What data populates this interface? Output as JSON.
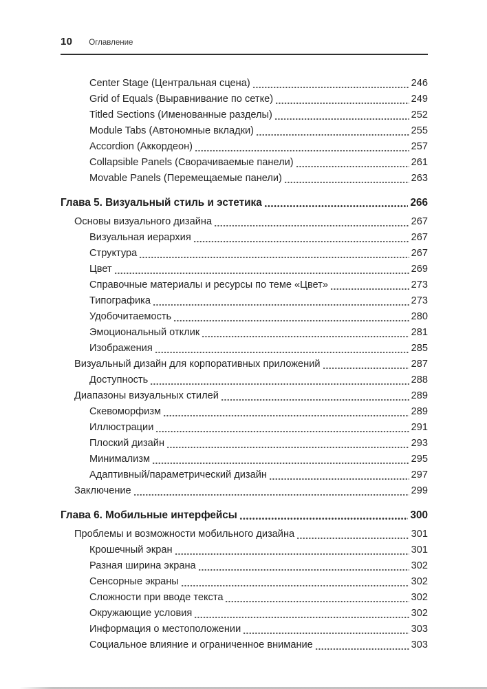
{
  "page": {
    "number": "10",
    "header_title": "Оглавление"
  },
  "toc": {
    "entries": [
      {
        "level": 2,
        "label": "Center Stage (Центральная сцена)",
        "page": "246"
      },
      {
        "level": 2,
        "label": "Grid of Equals (Выравнивание по сетке)",
        "page": "249"
      },
      {
        "level": 2,
        "label": "Titled Sections (Именованные разделы)",
        "page": "252"
      },
      {
        "level": 2,
        "label": "Module Tabs (Автономные вкладки)",
        "page": "255"
      },
      {
        "level": 2,
        "label": "Accordion (Аккордеон)",
        "page": "257"
      },
      {
        "level": 2,
        "label": "Collapsible Panels (Сворачиваемые панели)",
        "page": "261"
      },
      {
        "level": 2,
        "label": "Movable Panels (Перемещаемые панели)",
        "page": "263"
      },
      {
        "level": 0,
        "label": "Глава 5. Визуальный стиль и эстетика",
        "page": "266"
      },
      {
        "level": 1,
        "label": "Основы визуального дизайна",
        "page": "267"
      },
      {
        "level": 2,
        "label": "Визуальная иерархия",
        "page": "267"
      },
      {
        "level": 2,
        "label": "Структура",
        "page": "267"
      },
      {
        "level": 2,
        "label": "Цвет",
        "page": "269"
      },
      {
        "level": 2,
        "label": "Справочные материалы и ресурсы по теме «Цвет»",
        "page": "273"
      },
      {
        "level": 2,
        "label": "Типографика",
        "page": "273"
      },
      {
        "level": 2,
        "label": "Удобочитаемость",
        "page": "280"
      },
      {
        "level": 2,
        "label": "Эмоциональный отклик",
        "page": "281"
      },
      {
        "level": 2,
        "label": "Изображения",
        "page": "285"
      },
      {
        "level": 1,
        "label": "Визуальный дизайн для корпоративных приложений",
        "page": "287"
      },
      {
        "level": 2,
        "label": "Доступность",
        "page": "288"
      },
      {
        "level": 1,
        "label": "Диапазоны визуальных стилей",
        "page": "289"
      },
      {
        "level": 2,
        "label": "Скевоморфизм",
        "page": "289"
      },
      {
        "level": 2,
        "label": "Иллюстрации",
        "page": "291"
      },
      {
        "level": 2,
        "label": "Плоский дизайн",
        "page": "293"
      },
      {
        "level": 2,
        "label": "Минимализм",
        "page": "295"
      },
      {
        "level": 2,
        "label": "Адаптивный/параметрический дизайн",
        "page": "297"
      },
      {
        "level": 1,
        "label": "Заключение",
        "page": "299"
      },
      {
        "level": 0,
        "label": "Глава 6. Мобильные интерфейсы",
        "page": "300"
      },
      {
        "level": 1,
        "label": "Проблемы и возможности мобильного дизайна",
        "page": "301"
      },
      {
        "level": 2,
        "label": "Крошечный экран",
        "page": "301"
      },
      {
        "level": 2,
        "label": "Разная ширина экрана",
        "page": "302"
      },
      {
        "level": 2,
        "label": "Сенсорные экраны",
        "page": "302"
      },
      {
        "level": 2,
        "label": "Сложности при вводе текста",
        "page": "302"
      },
      {
        "level": 2,
        "label": "Окружающие условия",
        "page": "302"
      },
      {
        "level": 2,
        "label": "Информация о местоположении",
        "page": "303"
      },
      {
        "level": 2,
        "label": "Социальное влияние и ограниченное внимание",
        "page": "303"
      }
    ]
  },
  "colors": {
    "text": "#242424",
    "chapter_text": "#1d1d1d",
    "rule": "#2e2e2e",
    "dot_leader": "#4f4f4f",
    "page_edge_shadow": "#b2b2b2"
  }
}
